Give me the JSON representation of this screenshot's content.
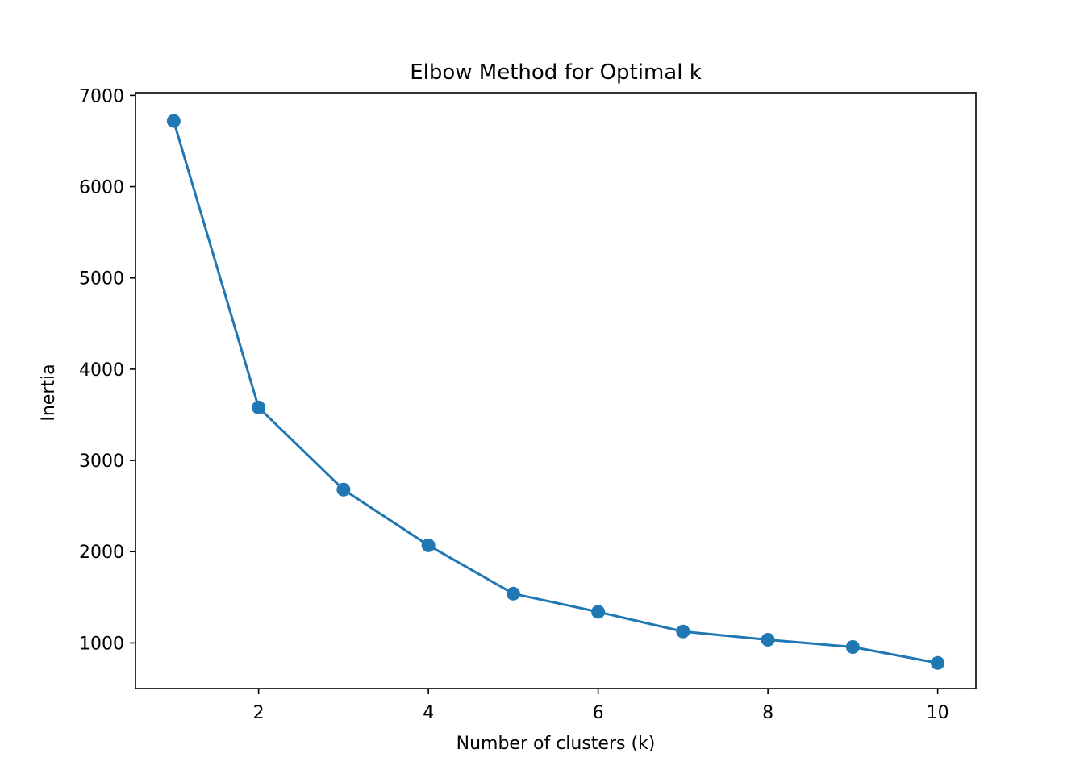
{
  "chart_data": {
    "type": "line",
    "title": "Elbow Method for Optimal k",
    "xlabel": "Number of clusters (k)",
    "ylabel": "Inertia",
    "x": [
      1,
      2,
      3,
      4,
      5,
      6,
      7,
      8,
      9,
      10
    ],
    "series": [
      {
        "values": [
          6720,
          3580,
          2680,
          2070,
          1540,
          1340,
          1125,
          1035,
          955,
          780
        ],
        "color": "#1f77b4",
        "marker": "circle"
      }
    ],
    "xlim": [
      0.55,
      10.45
    ],
    "ylim": [
      500,
      7030
    ],
    "xticks": [
      2,
      4,
      6,
      8,
      10
    ],
    "yticks": [
      1000,
      2000,
      3000,
      4000,
      5000,
      6000,
      7000
    ],
    "grid": false,
    "legend": "none"
  }
}
